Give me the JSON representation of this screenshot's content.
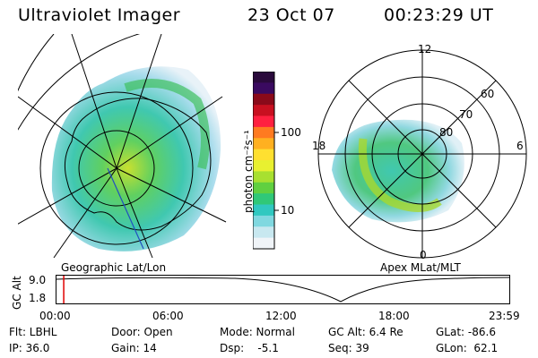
{
  "header": {
    "instrument": "Ultraviolet Imager",
    "date": "23 Oct 07",
    "time": "00:23:29 UT"
  },
  "left_map": {
    "caption": "Geographic Lat/Lon"
  },
  "right_map": {
    "caption": "Apex MLat/MLT",
    "mlt_labels": [
      "12",
      "18",
      "6",
      "0"
    ],
    "lat_labels": [
      "60",
      "70",
      "80"
    ]
  },
  "colorbar": {
    "unit_label": "photon cm⁻²s⁻¹",
    "ticks": [
      "100",
      "10"
    ],
    "colors": [
      "#2a0a3c",
      "#3a0a60",
      "#8a0a1a",
      "#c81020",
      "#ff2040",
      "#ff7a20",
      "#ffb020",
      "#ffe030",
      "#e8f030",
      "#a8e030",
      "#60d040",
      "#30c878",
      "#30c8c0",
      "#80d8e0",
      "#c8e8f0",
      "#f0f4f8"
    ]
  },
  "timeline": {
    "axis_label": "GC Alt",
    "y_ticks": [
      "9.0",
      "1.8"
    ],
    "x_ticks": [
      "00:00",
      "06:00",
      "12:00",
      "18:00",
      "23:59"
    ],
    "current_fraction": 0.016
  },
  "status": {
    "flt": "Flt: LBHL",
    "ip": "IP: 36.0",
    "door": "Door: Open",
    "gain": "Gain: 14",
    "mode": "Mode: Normal",
    "dsp": "Dsp:    -5.1",
    "gc_alt": "GC Alt: 6.4 Re",
    "seq": "Seq: 39",
    "glat": "GLat: -86.6",
    "glon": "GLon:  62.1"
  }
}
